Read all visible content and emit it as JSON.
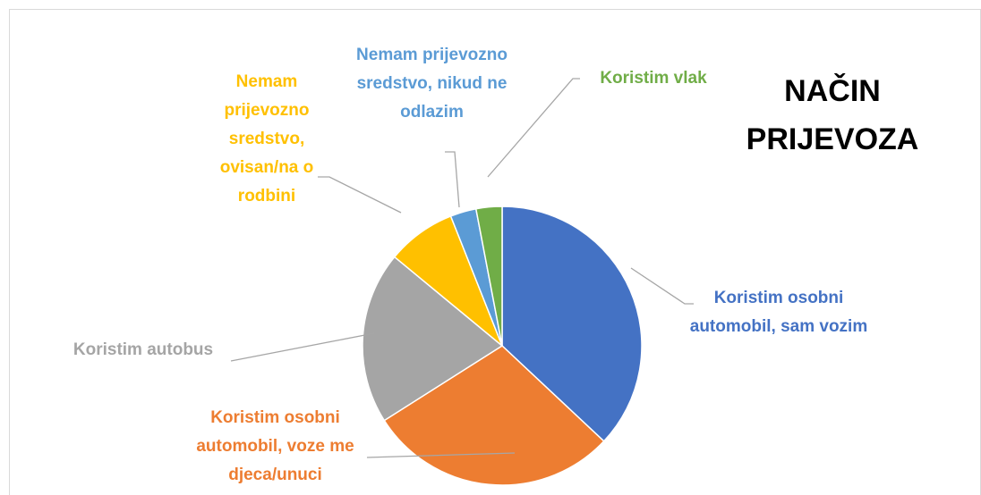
{
  "chart_data": {
    "type": "pie",
    "title": "NAČIN PRIJEVOZA",
    "categories": [
      "Koristim osobni automobil, sam vozim",
      "Koristim osobni automobil, voze me djeca/unuci",
      "Koristim autobus",
      "Nemam prijevozno sredstvo, ovisan/na o rodbini",
      "Nemam prijevozno sredstvo, nikud ne odlazim",
      "Koristim vlak"
    ],
    "values": [
      37,
      29,
      20,
      8,
      3,
      3
    ],
    "colors": [
      "#4472c4",
      "#ed7d31",
      "#a5a5a5",
      "#ffc000",
      "#5b9bd5",
      "#70ad47"
    ]
  }
}
